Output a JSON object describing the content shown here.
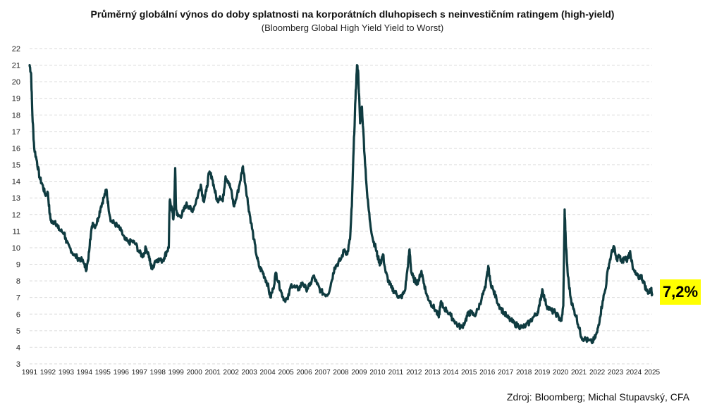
{
  "chart_data": {
    "type": "line",
    "title": "Průměrný globální výnos do doby splatnosti na korporátních dluhopisech s neinvestičním ratingem (high-yield)",
    "subtitle": "(Bloomberg Global High Yield Yield to Worst)",
    "xlabel": "",
    "ylabel": "",
    "ylim": [
      3,
      22
    ],
    "xlim": [
      1991,
      2025
    ],
    "yticks": [
      "3",
      "4",
      "5",
      "6",
      "7",
      "8",
      "9",
      "10",
      "11",
      "12",
      "13",
      "14",
      "15",
      "16",
      "17",
      "18",
      "19",
      "20",
      "21",
      "22"
    ],
    "xticks": [
      "1991",
      "1992",
      "1993",
      "1994",
      "1995",
      "1996",
      "1997",
      "1998",
      "1999",
      "2000",
      "2001",
      "2002",
      "2003",
      "2004",
      "2005",
      "2006",
      "2007",
      "2008",
      "2009",
      "2010",
      "2011",
      "2012",
      "2013",
      "2014",
      "2015",
      "2016",
      "2017",
      "2018",
      "2019",
      "2020",
      "2021",
      "2022",
      "2023",
      "2024",
      "2025"
    ],
    "grid": true,
    "series": [
      {
        "color": "#0f3b40",
        "points": [
          [
            1991.0,
            21.0
          ],
          [
            1991.08,
            20.5
          ],
          [
            1991.15,
            18.0
          ],
          [
            1991.25,
            16.0
          ],
          [
            1991.4,
            15.2
          ],
          [
            1991.55,
            14.2
          ],
          [
            1991.7,
            13.8
          ],
          [
            1991.85,
            13.2
          ],
          [
            1992.0,
            13.3
          ],
          [
            1992.1,
            12.0
          ],
          [
            1992.2,
            11.5
          ],
          [
            1992.4,
            11.6
          ],
          [
            1992.55,
            11.2
          ],
          [
            1992.7,
            11.0
          ],
          [
            1992.9,
            10.9
          ],
          [
            1993.0,
            10.3
          ],
          [
            1993.2,
            10.0
          ],
          [
            1993.4,
            9.6
          ],
          [
            1993.6,
            9.4
          ],
          [
            1993.8,
            9.3
          ],
          [
            1994.0,
            9.0
          ],
          [
            1994.1,
            8.7
          ],
          [
            1994.2,
            9.2
          ],
          [
            1994.3,
            10.5
          ],
          [
            1994.45,
            11.5
          ],
          [
            1994.6,
            11.3
          ],
          [
            1994.75,
            11.8
          ],
          [
            1994.9,
            12.5
          ],
          [
            1995.05,
            13.0
          ],
          [
            1995.2,
            13.5
          ],
          [
            1995.3,
            12.5
          ],
          [
            1995.45,
            11.6
          ],
          [
            1995.6,
            11.5
          ],
          [
            1995.8,
            11.3
          ],
          [
            1996.0,
            11.0
          ],
          [
            1996.2,
            10.5
          ],
          [
            1996.4,
            10.3
          ],
          [
            1996.6,
            10.4
          ],
          [
            1996.8,
            10.2
          ],
          [
            1997.0,
            9.7
          ],
          [
            1997.2,
            9.5
          ],
          [
            1997.35,
            10.0
          ],
          [
            1997.5,
            9.6
          ],
          [
            1997.6,
            9.0
          ],
          [
            1997.7,
            8.7
          ],
          [
            1997.85,
            9.2
          ],
          [
            1998.0,
            9.3
          ],
          [
            1998.2,
            9.2
          ],
          [
            1998.35,
            9.4
          ],
          [
            1998.5,
            9.8
          ],
          [
            1998.6,
            10.0
          ],
          [
            1998.65,
            12.8
          ],
          [
            1998.75,
            12.5
          ],
          [
            1998.85,
            11.7
          ],
          [
            1998.9,
            12.5
          ],
          [
            1998.95,
            14.8
          ],
          [
            1999.0,
            12.3
          ],
          [
            1999.1,
            11.9
          ],
          [
            1999.25,
            11.9
          ],
          [
            1999.4,
            12.2
          ],
          [
            1999.55,
            12.6
          ],
          [
            1999.7,
            12.5
          ],
          [
            1999.85,
            12.2
          ],
          [
            2000.0,
            12.5
          ],
          [
            2000.2,
            13.2
          ],
          [
            2000.35,
            13.8
          ],
          [
            2000.5,
            12.8
          ],
          [
            2000.65,
            13.4
          ],
          [
            2000.8,
            14.5
          ],
          [
            2000.95,
            14.3
          ],
          [
            2001.1,
            13.5
          ],
          [
            2001.25,
            12.8
          ],
          [
            2001.4,
            13.1
          ],
          [
            2001.55,
            12.8
          ],
          [
            2001.7,
            14.3
          ],
          [
            2001.85,
            14.0
          ],
          [
            2002.0,
            13.5
          ],
          [
            2002.15,
            12.5
          ],
          [
            2002.3,
            13.0
          ],
          [
            2002.5,
            14.0
          ],
          [
            2002.65,
            14.9
          ],
          [
            2002.8,
            13.7
          ],
          [
            2002.95,
            12.5
          ],
          [
            2003.1,
            11.5
          ],
          [
            2003.25,
            10.5
          ],
          [
            2003.4,
            9.5
          ],
          [
            2003.55,
            8.8
          ],
          [
            2003.7,
            8.6
          ],
          [
            2003.85,
            8.2
          ],
          [
            2004.0,
            7.8
          ],
          [
            2004.15,
            7.0
          ],
          [
            2004.3,
            7.5
          ],
          [
            2004.45,
            8.5
          ],
          [
            2004.6,
            7.9
          ],
          [
            2004.75,
            7.3
          ],
          [
            2004.9,
            6.9
          ],
          [
            2005.1,
            6.9
          ],
          [
            2005.3,
            7.8
          ],
          [
            2005.5,
            7.6
          ],
          [
            2005.7,
            7.5
          ],
          [
            2005.9,
            7.9
          ],
          [
            2006.1,
            7.5
          ],
          [
            2006.3,
            7.7
          ],
          [
            2006.5,
            8.3
          ],
          [
            2006.7,
            7.8
          ],
          [
            2006.9,
            7.4
          ],
          [
            2007.1,
            7.2
          ],
          [
            2007.3,
            7.2
          ],
          [
            2007.5,
            8.0
          ],
          [
            2007.65,
            8.8
          ],
          [
            2007.8,
            9.0
          ],
          [
            2008.0,
            9.3
          ],
          [
            2008.2,
            9.9
          ],
          [
            2008.35,
            9.6
          ],
          [
            2008.5,
            10.5
          ],
          [
            2008.6,
            12.5
          ],
          [
            2008.7,
            16.0
          ],
          [
            2008.8,
            19.0
          ],
          [
            2008.88,
            21.0
          ],
          [
            2008.95,
            20.5
          ],
          [
            2009.05,
            17.5
          ],
          [
            2009.15,
            18.5
          ],
          [
            2009.3,
            15.5
          ],
          [
            2009.45,
            13.0
          ],
          [
            2009.6,
            11.5
          ],
          [
            2009.75,
            10.5
          ],
          [
            2009.9,
            10.0
          ],
          [
            2010.0,
            9.5
          ],
          [
            2010.15,
            9.0
          ],
          [
            2010.3,
            9.6
          ],
          [
            2010.45,
            8.5
          ],
          [
            2010.6,
            8.0
          ],
          [
            2010.75,
            7.6
          ],
          [
            2010.9,
            7.4
          ],
          [
            2011.05,
            7.2
          ],
          [
            2011.2,
            7.0
          ],
          [
            2011.35,
            7.1
          ],
          [
            2011.5,
            7.4
          ],
          [
            2011.65,
            8.8
          ],
          [
            2011.75,
            9.9
          ],
          [
            2011.85,
            8.5
          ],
          [
            2011.95,
            8.2
          ],
          [
            2012.1,
            7.9
          ],
          [
            2012.25,
            8.0
          ],
          [
            2012.4,
            8.6
          ],
          [
            2012.55,
            7.8
          ],
          [
            2012.7,
            7.1
          ],
          [
            2012.85,
            6.8
          ],
          [
            2013.0,
            6.5
          ],
          [
            2013.2,
            6.2
          ],
          [
            2013.35,
            5.8
          ],
          [
            2013.45,
            6.7
          ],
          [
            2013.6,
            6.4
          ],
          [
            2013.8,
            6.2
          ],
          [
            2014.0,
            5.9
          ],
          [
            2014.2,
            5.6
          ],
          [
            2014.4,
            5.3
          ],
          [
            2014.6,
            5.2
          ],
          [
            2014.8,
            5.6
          ],
          [
            2014.95,
            6.0
          ],
          [
            2015.1,
            6.1
          ],
          [
            2015.3,
            5.9
          ],
          [
            2015.5,
            6.3
          ],
          [
            2015.7,
            7.0
          ],
          [
            2015.9,
            7.6
          ],
          [
            2016.05,
            8.9
          ],
          [
            2016.15,
            8.0
          ],
          [
            2016.3,
            7.5
          ],
          [
            2016.5,
            6.9
          ],
          [
            2016.7,
            6.4
          ],
          [
            2016.9,
            6.1
          ],
          [
            2017.1,
            5.8
          ],
          [
            2017.3,
            5.6
          ],
          [
            2017.5,
            5.4
          ],
          [
            2017.7,
            5.3
          ],
          [
            2017.9,
            5.2
          ],
          [
            2018.1,
            5.3
          ],
          [
            2018.3,
            5.5
          ],
          [
            2018.5,
            5.8
          ],
          [
            2018.7,
            6.0
          ],
          [
            2018.85,
            6.5
          ],
          [
            2019.0,
            7.5
          ],
          [
            2019.15,
            6.8
          ],
          [
            2019.3,
            6.4
          ],
          [
            2019.5,
            6.2
          ],
          [
            2019.7,
            6.1
          ],
          [
            2019.9,
            5.8
          ],
          [
            2020.05,
            5.6
          ],
          [
            2020.15,
            6.5
          ],
          [
            2020.22,
            12.3
          ],
          [
            2020.3,
            10.0
          ],
          [
            2020.4,
            8.3
          ],
          [
            2020.55,
            7.0
          ],
          [
            2020.7,
            6.3
          ],
          [
            2020.85,
            5.9
          ],
          [
            2021.0,
            5.2
          ],
          [
            2021.15,
            4.6
          ],
          [
            2021.3,
            4.5
          ],
          [
            2021.5,
            4.4
          ],
          [
            2021.7,
            4.3
          ],
          [
            2021.85,
            4.5
          ],
          [
            2022.0,
            4.9
          ],
          [
            2022.15,
            5.8
          ],
          [
            2022.3,
            6.8
          ],
          [
            2022.45,
            7.5
          ],
          [
            2022.6,
            8.8
          ],
          [
            2022.75,
            9.5
          ],
          [
            2022.9,
            10.1
          ],
          [
            2023.05,
            9.3
          ],
          [
            2023.2,
            9.5
          ],
          [
            2023.35,
            9.1
          ],
          [
            2023.5,
            9.4
          ],
          [
            2023.65,
            9.3
          ],
          [
            2023.8,
            9.8
          ],
          [
            2023.95,
            8.7
          ],
          [
            2024.1,
            8.4
          ],
          [
            2024.25,
            8.2
          ],
          [
            2024.4,
            8.3
          ],
          [
            2024.55,
            7.9
          ],
          [
            2024.7,
            7.4
          ],
          [
            2024.85,
            7.3
          ],
          [
            2024.95,
            7.5
          ],
          [
            2025.0,
            7.2
          ]
        ]
      }
    ]
  },
  "callout": {
    "label": "7,2%",
    "color": "#ffff00"
  },
  "source": "Zdroj: Bloomberg; Michal Stupavský, CFA"
}
